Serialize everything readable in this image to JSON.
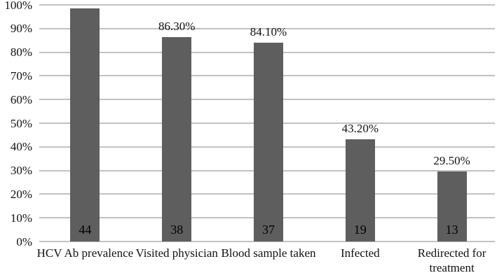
{
  "chart_data": {
    "type": "bar",
    "title": "",
    "xlabel": "",
    "ylabel": "",
    "ylim": [
      0,
      100
    ],
    "grid": true,
    "legend": false,
    "bar_color": "#5e5e5e",
    "gridline_color": "#c2c2c2",
    "categories": [
      "HCV Ab prevalence",
      "Visited physician",
      "Blood sample taken",
      "Infected",
      "Redirected for treatment"
    ],
    "values": [
      100,
      86.3,
      84.1,
      43.2,
      29.5
    ],
    "value_labels": [
      "",
      "86.30%",
      "84.10%",
      "43.20%",
      "29.50%"
    ],
    "counts": [
      "44",
      "38",
      "37",
      "19",
      "13"
    ],
    "y_ticks": [
      "100%",
      "90%",
      "80%",
      "70%",
      "60%",
      "50%",
      "40%",
      "30%",
      "20%",
      "10%",
      "0%"
    ]
  }
}
